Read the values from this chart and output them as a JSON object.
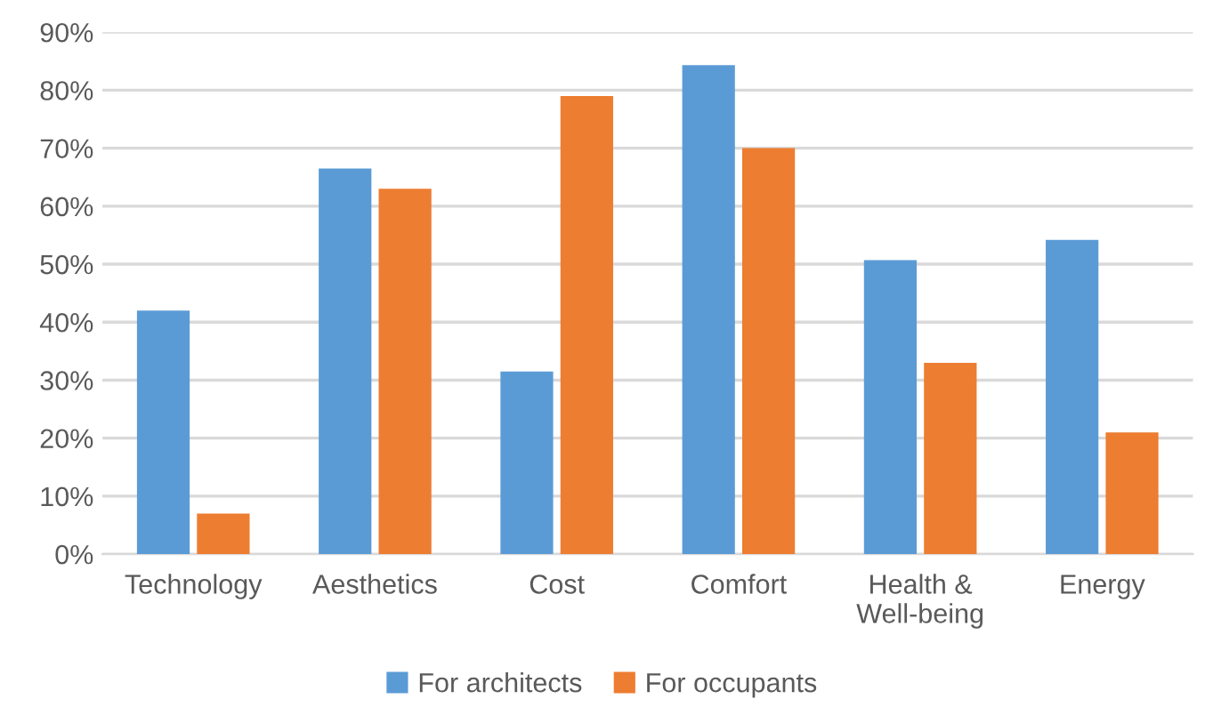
{
  "chart_data": {
    "type": "bar",
    "categories": [
      "Technology",
      "Aesthetics",
      "Cost",
      "Comfort",
      "Health &\nWell-being",
      "Energy"
    ],
    "series": [
      {
        "name": "For architects",
        "color": "#5b9bd5",
        "values": [
          42,
          66.5,
          31.5,
          84.3,
          50.7,
          54.2
        ]
      },
      {
        "name": "For occupants",
        "color": "#ed7d31",
        "values": [
          7,
          63,
          79,
          70,
          33,
          21
        ]
      }
    ],
    "ylim": [
      0,
      90
    ],
    "yticks": [
      {
        "value": 0,
        "label": "0%"
      },
      {
        "value": 10,
        "label": "10%"
      },
      {
        "value": 20,
        "label": "20%"
      },
      {
        "value": 30,
        "label": "30%"
      },
      {
        "value": 40,
        "label": "40%"
      },
      {
        "value": 50,
        "label": "50%"
      },
      {
        "value": 60,
        "label": "60%"
      },
      {
        "value": 70,
        "label": "70%"
      },
      {
        "value": 80,
        "label": "80%"
      },
      {
        "value": 90,
        "label": "90%"
      }
    ],
    "grid": "y",
    "legend": "bottom"
  }
}
